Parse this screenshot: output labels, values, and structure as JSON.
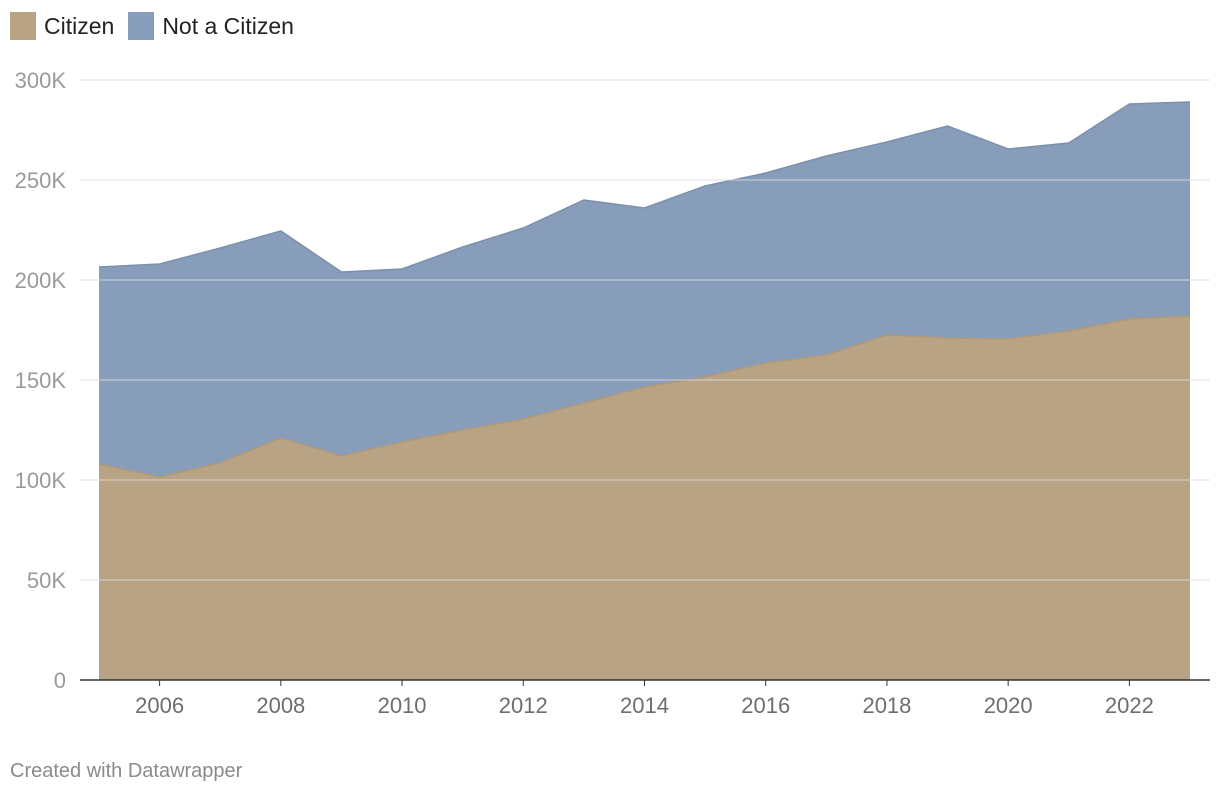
{
  "colors": {
    "citizen": "#b9a385",
    "not_citizen": "#889db9",
    "grid": "#dcdcdc",
    "axis": "#333333",
    "tick_text": "#9a9a9a",
    "x_tick_text": "#6e6e6e"
  },
  "legend": {
    "items": [
      {
        "label": "Citizen",
        "color": "#b9a385"
      },
      {
        "label": "Not a Citizen",
        "color": "#889db9"
      }
    ]
  },
  "footer": {
    "credit": "Created with Datawrapper"
  },
  "chart_data": {
    "type": "area",
    "stacked": true,
    "title": "",
    "xlabel": "",
    "ylabel": "",
    "x": [
      2005,
      2006,
      2007,
      2008,
      2009,
      2010,
      2011,
      2012,
      2013,
      2014,
      2015,
      2016,
      2017,
      2018,
      2019,
      2020,
      2021,
      2022,
      2023
    ],
    "series": [
      {
        "name": "Citizen",
        "color": "#b9a385",
        "values": [
          108000,
          101500,
          108500,
          121000,
          112000,
          119000,
          125000,
          130500,
          138500,
          146500,
          151500,
          158500,
          162500,
          172500,
          171000,
          170500,
          174500,
          180500,
          182000
        ]
      },
      {
        "name": "Not a Citizen",
        "color": "#889db9",
        "values": [
          98500,
          106500,
          107500,
          103500,
          92000,
          86500,
          91500,
          95500,
          101500,
          89500,
          95500,
          95000,
          99500,
          96500,
          106000,
          95000,
          94000,
          107500,
          107000
        ]
      }
    ],
    "totals": [
      206500,
      208000,
      216000,
      224500,
      204000,
      205500,
      216500,
      226000,
      240000,
      236000,
      247000,
      253500,
      262000,
      269000,
      277000,
      265500,
      268500,
      288000,
      289000
    ],
    "xlim": [
      2005,
      2023
    ],
    "ylim": [
      0,
      300000
    ],
    "y_ticks": [
      0,
      50000,
      100000,
      150000,
      200000,
      250000,
      300000
    ],
    "y_tick_labels": [
      "0",
      "50K",
      "100K",
      "150K",
      "200K",
      "250K",
      "300K"
    ],
    "x_ticks": [
      2006,
      2008,
      2010,
      2012,
      2014,
      2016,
      2018,
      2020,
      2022
    ],
    "x_tick_labels": [
      "2006",
      "2008",
      "2010",
      "2012",
      "2014",
      "2016",
      "2018",
      "2020",
      "2022"
    ],
    "grid": true,
    "legend_position": "top-left"
  }
}
